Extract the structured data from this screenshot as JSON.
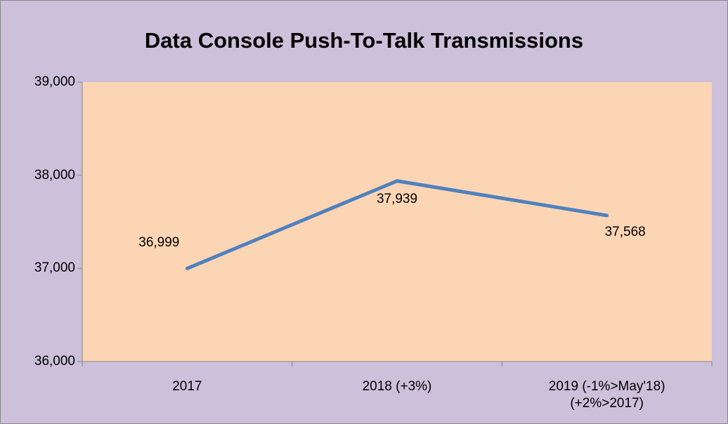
{
  "chart_data": {
    "type": "line",
    "title": "Data Console Push-To-Talk Transmissions",
    "categories": [
      "2017",
      "2018 (+3%)",
      "2019 (-1%>May'18)\n(+2%>2017)"
    ],
    "series": [
      {
        "name": "Data Console Push-To-Talk Transmissions",
        "color": "#4f81bd",
        "values": [
          36999,
          37939,
          37568
        ],
        "value_labels": [
          "36,999",
          "37,939",
          "37,568"
        ]
      }
    ],
    "ylim": [
      36000,
      39000
    ],
    "yticks": [
      {
        "value": 36000,
        "label": "36,000"
      },
      {
        "value": 37000,
        "label": "37,000"
      },
      {
        "value": 38000,
        "label": "38,000"
      },
      {
        "value": 39000,
        "label": "39,000"
      }
    ],
    "grid": false,
    "legend": false
  }
}
